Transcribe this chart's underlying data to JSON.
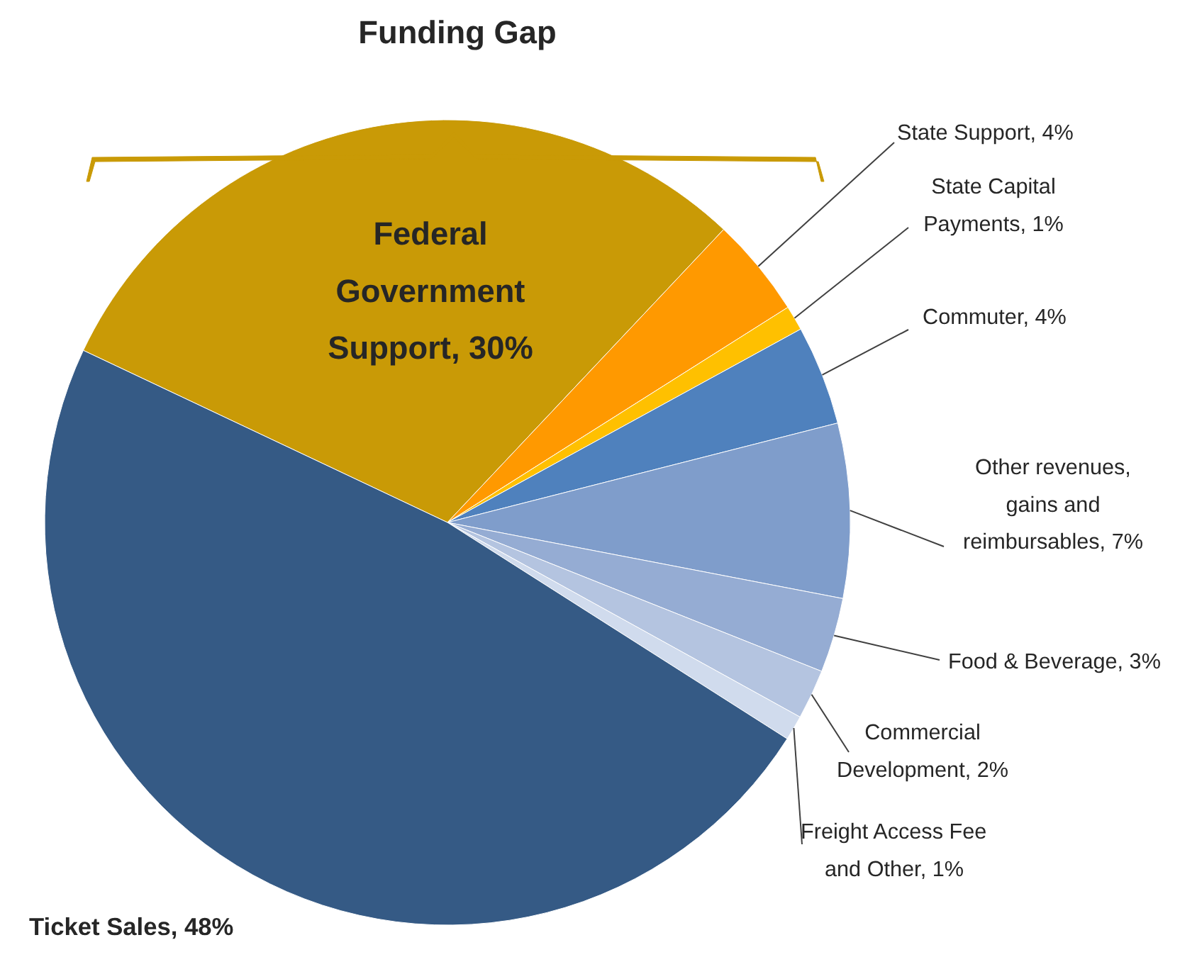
{
  "chart_data": {
    "type": "pie",
    "categories": [
      "Federal Government Support",
      "State Support",
      "State Capital Payments",
      "Commuter",
      "Other revenues, gains and reimbursables",
      "Food & Beverage",
      "Commercial Development",
      "Freight Access Fee and Other",
      "Ticket Sales"
    ],
    "values": [
      30,
      4,
      1,
      4,
      7,
      3,
      2,
      1,
      48
    ],
    "value_labels": [
      "30%",
      "4%",
      "1%",
      "4%",
      "7%",
      "3%",
      "2%",
      "1%",
      "48%"
    ],
    "colors": [
      "#c99a06",
      "#ff9900",
      "#ffc000",
      "#4f81bd",
      "#7f9dcb",
      "#95acd3",
      "#b4c4e0",
      "#d0dbed",
      "#355a85"
    ],
    "annotations": [
      "Funding Gap"
    ]
  }
}
